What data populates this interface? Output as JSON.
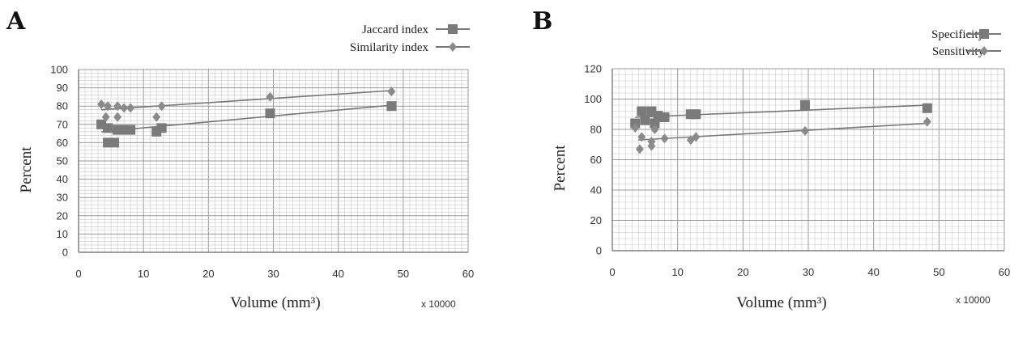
{
  "chart_data": [
    {
      "panel": "A",
      "type": "scatter",
      "xlabel": "Volume (mm³)",
      "x_multiplier": "x 10000",
      "ylabel": "Percent",
      "xlim": [
        0,
        60
      ],
      "ylim": [
        0,
        100
      ],
      "x_ticks": [
        0,
        10,
        20,
        30,
        40,
        50,
        60
      ],
      "y_ticks": [
        0,
        10,
        20,
        30,
        40,
        50,
        60,
        70,
        80,
        90,
        100
      ],
      "grid": true,
      "legend_position": "top-right",
      "series": [
        {
          "name": "Jaccard index",
          "marker": "square",
          "points": [
            [
              3.5,
              70
            ],
            [
              4.5,
              68
            ],
            [
              4.5,
              60
            ],
            [
              5.5,
              60
            ],
            [
              6,
              67
            ],
            [
              7,
              67
            ],
            [
              8,
              67
            ],
            [
              12,
              66
            ],
            [
              12.8,
              68
            ],
            [
              29.5,
              76
            ],
            [
              48.2,
              80
            ]
          ],
          "trendline": [
            [
              3.5,
              66
            ],
            [
              48.2,
              80.5
            ]
          ]
        },
        {
          "name": "Similarity index",
          "marker": "diamond",
          "points": [
            [
              3.5,
              81
            ],
            [
              4.2,
              74
            ],
            [
              4.5,
              80
            ],
            [
              6,
              74
            ],
            [
              6,
              80
            ],
            [
              7,
              79
            ],
            [
              8,
              79
            ],
            [
              12,
              74
            ],
            [
              12.8,
              80
            ],
            [
              29.5,
              85
            ],
            [
              48.2,
              88
            ]
          ],
          "trendline": [
            [
              3.5,
              78
            ],
            [
              48.2,
              88.5
            ]
          ]
        }
      ]
    },
    {
      "panel": "B",
      "type": "scatter",
      "xlabel": "Volume (mm³)",
      "x_multiplier": "x 10000",
      "ylabel": "Percent",
      "xlim": [
        0,
        60
      ],
      "ylim": [
        0,
        120
      ],
      "x_ticks": [
        0,
        10,
        20,
        30,
        40,
        50,
        60
      ],
      "y_ticks": [
        0,
        20,
        40,
        60,
        80,
        100,
        120
      ],
      "grid": true,
      "legend_position": "top-right",
      "series": [
        {
          "name": "Specificity",
          "marker": "square",
          "points": [
            [
              3.5,
              84
            ],
            [
              4.5,
              92
            ],
            [
              5,
              86
            ],
            [
              6,
              92
            ],
            [
              6.5,
              84
            ],
            [
              7,
              89
            ],
            [
              8,
              88
            ],
            [
              12,
              90
            ],
            [
              12.8,
              90
            ],
            [
              29.5,
              96
            ],
            [
              48.2,
              94
            ]
          ],
          "trendline": [
            [
              3.5,
              88
            ],
            [
              48.2,
              96
            ]
          ]
        },
        {
          "name": "Sensitivity",
          "marker": "diamond",
          "points": [
            [
              3.5,
              81
            ],
            [
              4.2,
              67
            ],
            [
              4.5,
              75
            ],
            [
              6,
              69
            ],
            [
              6,
              72
            ],
            [
              6.5,
              80
            ],
            [
              8,
              74
            ],
            [
              12,
              73
            ],
            [
              12.8,
              75
            ],
            [
              29.5,
              79
            ],
            [
              48.2,
              85
            ]
          ],
          "trendline": [
            [
              4,
              73
            ],
            [
              48.2,
              84
            ]
          ]
        }
      ]
    }
  ]
}
